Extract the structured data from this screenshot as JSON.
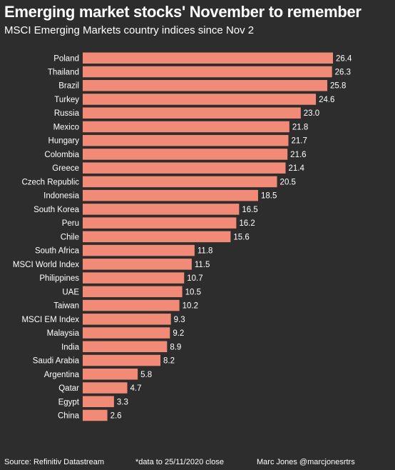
{
  "title": "Emerging market stocks' November to remember",
  "subtitle": "MSCI Emerging Markets country indices since Nov 2",
  "colors": {
    "background": "#2d2d2d",
    "bar": "#f28a78",
    "text": "#ffffff"
  },
  "footer": {
    "source": "Source: Refinitiv Datastream",
    "note": "*data to 25/11/2020 close",
    "credit": "Marc Jones @marcjonesrtrs"
  },
  "chart_data": {
    "type": "bar",
    "orientation": "horizontal",
    "categories": [
      "Poland",
      "Thailand",
      "Brazil",
      "Turkey",
      "Russia",
      "Mexico",
      "Hungary",
      "Colombia",
      "Greece",
      "Czech Republic",
      "Indonesia",
      "South Korea",
      "Peru",
      "Chile",
      "South Africa",
      "MSCI World Index",
      "Philippines",
      "UAE",
      "Taiwan",
      "MSCI EM Index",
      "Malaysia",
      "India",
      "Saudi Arabia",
      "Argentina",
      "Qatar",
      "Egypt",
      "China"
    ],
    "values": [
      26.4,
      26.3,
      25.8,
      24.6,
      23.0,
      21.8,
      21.7,
      21.6,
      21.4,
      20.5,
      18.5,
      16.5,
      16.2,
      15.6,
      11.8,
      11.5,
      10.7,
      10.5,
      10.2,
      9.3,
      9.2,
      8.9,
      8.2,
      5.8,
      4.7,
      3.3,
      2.6
    ],
    "value_labels": [
      "26.4",
      "26.3",
      "25.8",
      "24.6",
      "23.0",
      "21.8",
      "21.7",
      "21.6",
      "21.4",
      "20.5",
      "18.5",
      "16.5",
      "16.2",
      "15.6",
      "11.8",
      "11.5",
      "10.7",
      "10.5",
      "10.2",
      "9.3",
      "9.2",
      "8.9",
      "8.2",
      "5.8",
      "4.7",
      "3.3",
      "2.6"
    ],
    "title": "Emerging market stocks' November to remember",
    "subtitle": "MSCI Emerging Markets country indices since Nov 2",
    "xlabel": "",
    "ylabel": "",
    "xlim": [
      0,
      26.4
    ],
    "grid": false,
    "legend": "none"
  }
}
